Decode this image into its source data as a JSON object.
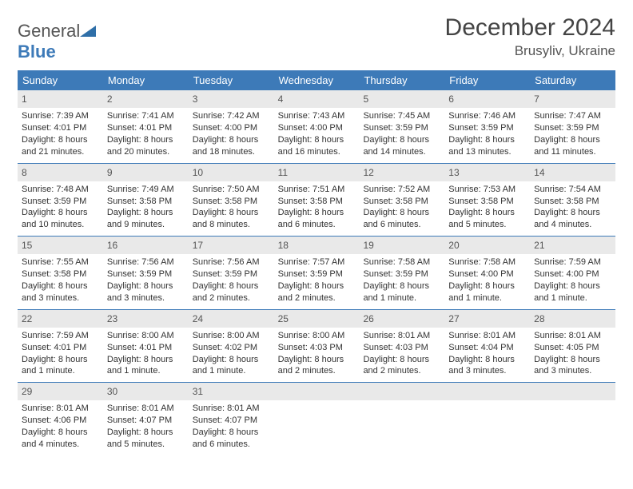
{
  "brand": {
    "word1": "General",
    "word2": "Blue",
    "shape_color": "#2f6fa8"
  },
  "title": "December 2024",
  "location": "Brusyliv, Ukraine",
  "colors": {
    "header_bg": "#3d7ab8",
    "header_text": "#ffffff",
    "daynum_bg": "#e9e9e9",
    "rule": "#3d7ab8",
    "body_text": "#333333"
  },
  "weekdays": [
    "Sunday",
    "Monday",
    "Tuesday",
    "Wednesday",
    "Thursday",
    "Friday",
    "Saturday"
  ],
  "weeks": [
    [
      {
        "n": "1",
        "sr": "Sunrise: 7:39 AM",
        "ss": "Sunset: 4:01 PM",
        "d1": "Daylight: 8 hours",
        "d2": "and 21 minutes."
      },
      {
        "n": "2",
        "sr": "Sunrise: 7:41 AM",
        "ss": "Sunset: 4:01 PM",
        "d1": "Daylight: 8 hours",
        "d2": "and 20 minutes."
      },
      {
        "n": "3",
        "sr": "Sunrise: 7:42 AM",
        "ss": "Sunset: 4:00 PM",
        "d1": "Daylight: 8 hours",
        "d2": "and 18 minutes."
      },
      {
        "n": "4",
        "sr": "Sunrise: 7:43 AM",
        "ss": "Sunset: 4:00 PM",
        "d1": "Daylight: 8 hours",
        "d2": "and 16 minutes."
      },
      {
        "n": "5",
        "sr": "Sunrise: 7:45 AM",
        "ss": "Sunset: 3:59 PM",
        "d1": "Daylight: 8 hours",
        "d2": "and 14 minutes."
      },
      {
        "n": "6",
        "sr": "Sunrise: 7:46 AM",
        "ss": "Sunset: 3:59 PM",
        "d1": "Daylight: 8 hours",
        "d2": "and 13 minutes."
      },
      {
        "n": "7",
        "sr": "Sunrise: 7:47 AM",
        "ss": "Sunset: 3:59 PM",
        "d1": "Daylight: 8 hours",
        "d2": "and 11 minutes."
      }
    ],
    [
      {
        "n": "8",
        "sr": "Sunrise: 7:48 AM",
        "ss": "Sunset: 3:59 PM",
        "d1": "Daylight: 8 hours",
        "d2": "and 10 minutes."
      },
      {
        "n": "9",
        "sr": "Sunrise: 7:49 AM",
        "ss": "Sunset: 3:58 PM",
        "d1": "Daylight: 8 hours",
        "d2": "and 9 minutes."
      },
      {
        "n": "10",
        "sr": "Sunrise: 7:50 AM",
        "ss": "Sunset: 3:58 PM",
        "d1": "Daylight: 8 hours",
        "d2": "and 8 minutes."
      },
      {
        "n": "11",
        "sr": "Sunrise: 7:51 AM",
        "ss": "Sunset: 3:58 PM",
        "d1": "Daylight: 8 hours",
        "d2": "and 6 minutes."
      },
      {
        "n": "12",
        "sr": "Sunrise: 7:52 AM",
        "ss": "Sunset: 3:58 PM",
        "d1": "Daylight: 8 hours",
        "d2": "and 6 minutes."
      },
      {
        "n": "13",
        "sr": "Sunrise: 7:53 AM",
        "ss": "Sunset: 3:58 PM",
        "d1": "Daylight: 8 hours",
        "d2": "and 5 minutes."
      },
      {
        "n": "14",
        "sr": "Sunrise: 7:54 AM",
        "ss": "Sunset: 3:58 PM",
        "d1": "Daylight: 8 hours",
        "d2": "and 4 minutes."
      }
    ],
    [
      {
        "n": "15",
        "sr": "Sunrise: 7:55 AM",
        "ss": "Sunset: 3:58 PM",
        "d1": "Daylight: 8 hours",
        "d2": "and 3 minutes."
      },
      {
        "n": "16",
        "sr": "Sunrise: 7:56 AM",
        "ss": "Sunset: 3:59 PM",
        "d1": "Daylight: 8 hours",
        "d2": "and 3 minutes."
      },
      {
        "n": "17",
        "sr": "Sunrise: 7:56 AM",
        "ss": "Sunset: 3:59 PM",
        "d1": "Daylight: 8 hours",
        "d2": "and 2 minutes."
      },
      {
        "n": "18",
        "sr": "Sunrise: 7:57 AM",
        "ss": "Sunset: 3:59 PM",
        "d1": "Daylight: 8 hours",
        "d2": "and 2 minutes."
      },
      {
        "n": "19",
        "sr": "Sunrise: 7:58 AM",
        "ss": "Sunset: 3:59 PM",
        "d1": "Daylight: 8 hours",
        "d2": "and 1 minute."
      },
      {
        "n": "20",
        "sr": "Sunrise: 7:58 AM",
        "ss": "Sunset: 4:00 PM",
        "d1": "Daylight: 8 hours",
        "d2": "and 1 minute."
      },
      {
        "n": "21",
        "sr": "Sunrise: 7:59 AM",
        "ss": "Sunset: 4:00 PM",
        "d1": "Daylight: 8 hours",
        "d2": "and 1 minute."
      }
    ],
    [
      {
        "n": "22",
        "sr": "Sunrise: 7:59 AM",
        "ss": "Sunset: 4:01 PM",
        "d1": "Daylight: 8 hours",
        "d2": "and 1 minute."
      },
      {
        "n": "23",
        "sr": "Sunrise: 8:00 AM",
        "ss": "Sunset: 4:01 PM",
        "d1": "Daylight: 8 hours",
        "d2": "and 1 minute."
      },
      {
        "n": "24",
        "sr": "Sunrise: 8:00 AM",
        "ss": "Sunset: 4:02 PM",
        "d1": "Daylight: 8 hours",
        "d2": "and 1 minute."
      },
      {
        "n": "25",
        "sr": "Sunrise: 8:00 AM",
        "ss": "Sunset: 4:03 PM",
        "d1": "Daylight: 8 hours",
        "d2": "and 2 minutes."
      },
      {
        "n": "26",
        "sr": "Sunrise: 8:01 AM",
        "ss": "Sunset: 4:03 PM",
        "d1": "Daylight: 8 hours",
        "d2": "and 2 minutes."
      },
      {
        "n": "27",
        "sr": "Sunrise: 8:01 AM",
        "ss": "Sunset: 4:04 PM",
        "d1": "Daylight: 8 hours",
        "d2": "and 3 minutes."
      },
      {
        "n": "28",
        "sr": "Sunrise: 8:01 AM",
        "ss": "Sunset: 4:05 PM",
        "d1": "Daylight: 8 hours",
        "d2": "and 3 minutes."
      }
    ],
    [
      {
        "n": "29",
        "sr": "Sunrise: 8:01 AM",
        "ss": "Sunset: 4:06 PM",
        "d1": "Daylight: 8 hours",
        "d2": "and 4 minutes."
      },
      {
        "n": "30",
        "sr": "Sunrise: 8:01 AM",
        "ss": "Sunset: 4:07 PM",
        "d1": "Daylight: 8 hours",
        "d2": "and 5 minutes."
      },
      {
        "n": "31",
        "sr": "Sunrise: 8:01 AM",
        "ss": "Sunset: 4:07 PM",
        "d1": "Daylight: 8 hours",
        "d2": "and 6 minutes."
      },
      {
        "empty": true
      },
      {
        "empty": true
      },
      {
        "empty": true
      },
      {
        "empty": true
      }
    ]
  ]
}
